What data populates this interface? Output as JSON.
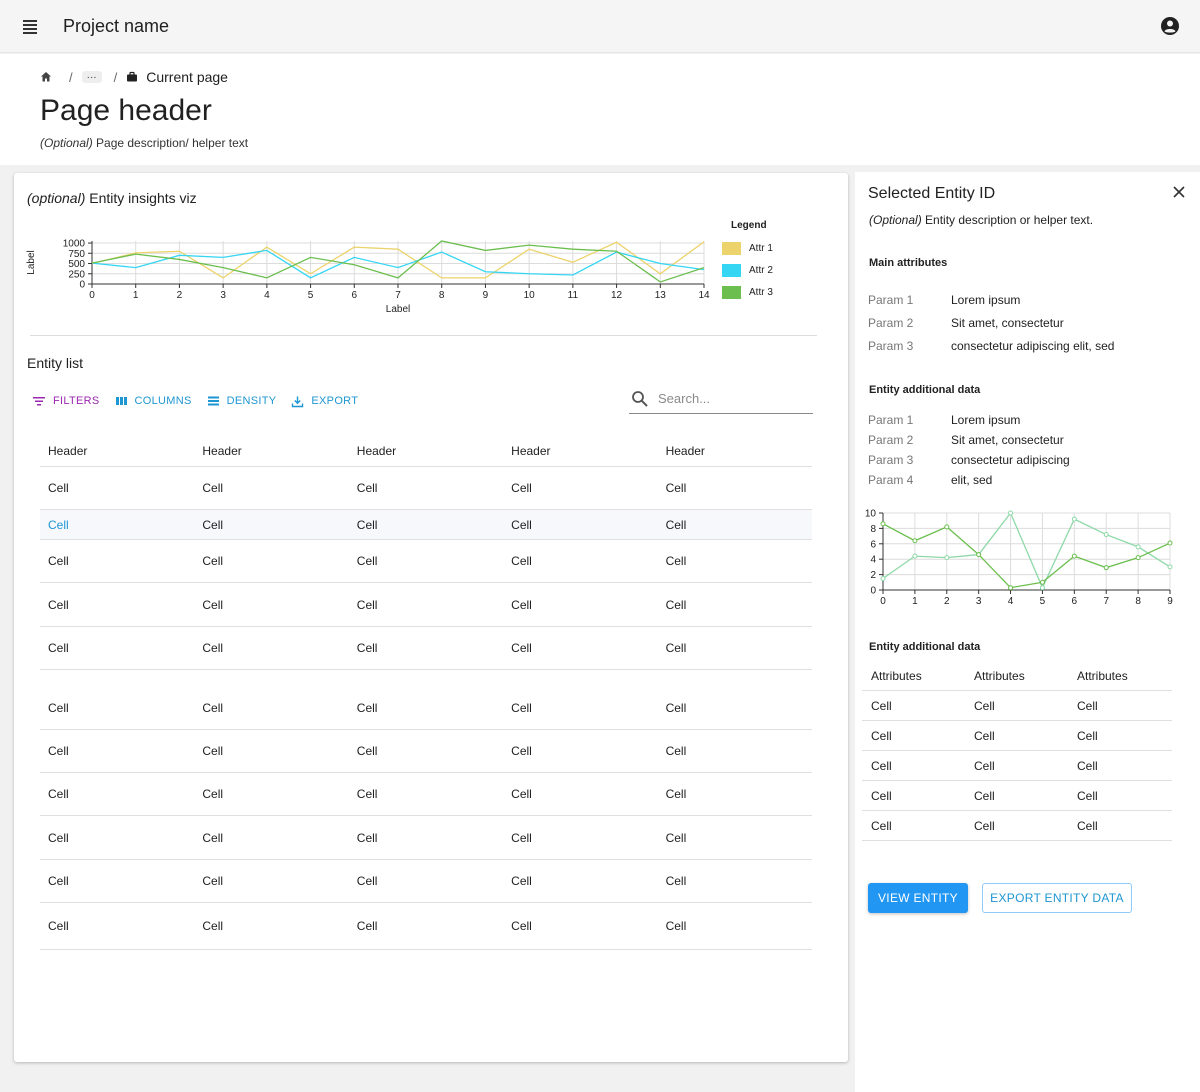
{
  "appbar": {
    "title": "Project name",
    "menu_icon": "hamburger-menu-icon",
    "account_icon": "account-circle-icon"
  },
  "breadcrumb": {
    "home_icon": "home-icon",
    "ellipsis": "···",
    "current_icon": "briefcase-icon",
    "current": "Current page",
    "separator": "/"
  },
  "page": {
    "title": "Page header",
    "desc_optional": "(Optional)",
    "desc_text": " Page description/ helper text"
  },
  "viz": {
    "title_optional": "(optional)",
    "title_text": " Entity insights viz",
    "legend_title": "Legend"
  },
  "chart_data": [
    {
      "type": "line",
      "title": "",
      "xlabel": "Label",
      "ylabel": "Label",
      "x": [
        0,
        1,
        2,
        3,
        4,
        5,
        6,
        7,
        8,
        9,
        10,
        11,
        12,
        13,
        14
      ],
      "yticks": [
        0,
        250,
        500,
        750,
        1000
      ],
      "ylim": [
        0,
        1050
      ],
      "xlim": [
        0,
        14
      ],
      "grid": true,
      "legend_position": "right",
      "series": [
        {
          "name": "Attr 1",
          "color": "#ecd36b",
          "values": [
            500,
            760,
            800,
            150,
            900,
            250,
            900,
            850,
            150,
            150,
            850,
            530,
            1020,
            250,
            1030
          ]
        },
        {
          "name": "Attr 2",
          "color": "#35d6f4",
          "values": [
            510,
            400,
            700,
            650,
            820,
            150,
            650,
            400,
            780,
            300,
            250,
            220,
            780,
            500,
            350
          ]
        },
        {
          "name": "Attr 3",
          "color": "#6cbf4f",
          "values": [
            510,
            730,
            600,
            400,
            150,
            650,
            470,
            150,
            1050,
            820,
            950,
            850,
            800,
            50,
            400
          ]
        }
      ]
    },
    {
      "type": "line",
      "title": "",
      "x": [
        0,
        1,
        2,
        3,
        4,
        5,
        6,
        7,
        8,
        9
      ],
      "yticks": [
        0,
        2,
        4,
        6,
        8,
        10
      ],
      "ylim": [
        0,
        10
      ],
      "xlim": [
        0,
        9
      ],
      "grid": true,
      "series": [
        {
          "color": "#8ed8a8",
          "values": [
            1.5,
            4.4,
            4.2,
            4.6,
            10,
            0.3,
            9.2,
            7.2,
            5.6,
            3
          ]
        },
        {
          "color": "#6cbf4f",
          "values": [
            8.6,
            6.4,
            8.2,
            4.6,
            0.3,
            1,
            4.4,
            2.9,
            4.2,
            6.1
          ]
        }
      ]
    }
  ],
  "entity_list": {
    "title": "Entity list",
    "toolbar": {
      "filters": "FILTERS",
      "columns": "COLUMNS",
      "density": "DENSITY",
      "export": "EXPORT",
      "filter_icon": "filter-icon",
      "columns_icon": "columns-icon",
      "density_icon": "density-icon",
      "export_icon": "export-icon"
    },
    "search_placeholder": "Search...",
    "search_icon": "search-icon",
    "headers": [
      "Header",
      "Header",
      "Header",
      "Header",
      "Header"
    ],
    "rows_group1": [
      [
        "Cell",
        "Cell",
        "Cell",
        "Cell",
        "Cell"
      ],
      [
        "Cell",
        "Cell",
        "Cell",
        "Cell",
        "Cell"
      ],
      [
        "Cell",
        "Cell",
        "Cell",
        "Cell",
        "Cell"
      ],
      [
        "Cell",
        "Cell",
        "Cell",
        "Cell",
        "Cell"
      ],
      [
        "Cell",
        "Cell",
        "Cell",
        "Cell",
        "Cell"
      ]
    ],
    "rows_group2": [
      [
        "Cell",
        "Cell",
        "Cell",
        "Cell",
        "Cell"
      ],
      [
        "Cell",
        "Cell",
        "Cell",
        "Cell",
        "Cell"
      ],
      [
        "Cell",
        "Cell",
        "Cell",
        "Cell",
        "Cell"
      ],
      [
        "Cell",
        "Cell",
        "Cell",
        "Cell",
        "Cell"
      ],
      [
        "Cell",
        "Cell",
        "Cell",
        "Cell",
        "Cell"
      ],
      [
        "Cell",
        "Cell",
        "Cell",
        "Cell",
        "Cell"
      ]
    ]
  },
  "side": {
    "title": "Selected Entity ID",
    "close_icon": "close-icon",
    "desc_optional": "(Optional)",
    "desc_text": " Entity description or helper text.",
    "main_attributes_title": "Main attributes",
    "main_attributes": [
      {
        "key": "Param 1",
        "value": "Lorem ipsum"
      },
      {
        "key": "Param 2",
        "value": "Sit amet, consectetur"
      },
      {
        "key": "Param 3",
        "value": "consectetur adipiscing elit, sed"
      }
    ],
    "additional_title": "Entity additional data",
    "additional": [
      {
        "key": "Param 1",
        "value": "Lorem ipsum"
      },
      {
        "key": "Param 2",
        "value": "Sit amet, consectetur"
      },
      {
        "key": "Param 3",
        "value": "consectetur adipiscing"
      },
      {
        "key": "Param 4",
        "value": "elit, sed"
      }
    ],
    "additional2_title": "Entity additional data",
    "table_headers": [
      "Attributes",
      "Attributes",
      "Attributes"
    ],
    "table_rows": [
      [
        "Cell",
        "Cell",
        "Cell"
      ],
      [
        "Cell",
        "Cell",
        "Cell"
      ],
      [
        "Cell",
        "Cell",
        "Cell"
      ],
      [
        "Cell",
        "Cell",
        "Cell"
      ],
      [
        "Cell",
        "Cell",
        "Cell"
      ]
    ],
    "view_button": "VIEW ENTITY",
    "export_button": "EXPORT ENTITY DATA"
  }
}
